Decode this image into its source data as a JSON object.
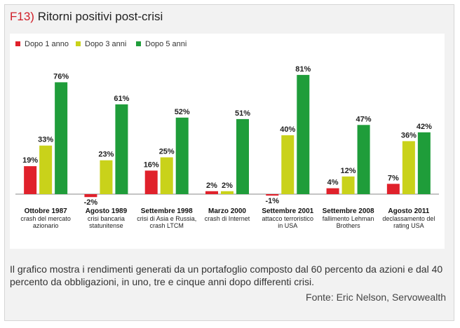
{
  "header": {
    "code": "F13)",
    "title": "Ritorni positivi post-crisi"
  },
  "colors": {
    "series_1": "#e0212b",
    "series_2": "#c9d21a",
    "series_3": "#1f9d3a"
  },
  "chart_data": {
    "type": "bar",
    "categories": [
      {
        "label": "Ottobre 1987",
        "sub": [
          "crash del mercato",
          "azionario"
        ]
      },
      {
        "label": "Agosto 1989",
        "sub": [
          "crisi bancaria",
          "statunitense"
        ]
      },
      {
        "label": "Settembre  1998",
        "sub": [
          "crisi di Asia e Russia,",
          "crash LTCM"
        ]
      },
      {
        "label": "Marzo  2000",
        "sub": [
          "crash di Internet"
        ]
      },
      {
        "label": "Settembre 2001",
        "sub": [
          "attacco terroristico",
          "in USA"
        ]
      },
      {
        "label": "Settembre 2008",
        "sub": [
          "fallimento Lehman",
          "Brothers"
        ]
      },
      {
        "label": "Agosto 2011",
        "sub": [
          "declassamento del",
          "rating USA"
        ]
      }
    ],
    "series": [
      {
        "name": "Dopo 1 anno",
        "values": [
          19,
          -2,
          16,
          2,
          -1,
          4,
          7
        ],
        "labels": [
          "19%",
          "-2%",
          "16%",
          "2%",
          "-1%",
          "4%",
          "7%"
        ]
      },
      {
        "name": "Dopo 3 anni",
        "values": [
          33,
          23,
          25,
          2,
          40,
          12,
          36
        ],
        "labels": [
          "33%",
          "23%",
          "25%",
          "2%",
          "40%",
          "12%",
          "36%"
        ]
      },
      {
        "name": "Dopo 5 anni",
        "values": [
          76,
          61,
          52,
          51,
          81,
          47,
          42
        ],
        "labels": [
          "76%",
          "61%",
          "52%",
          "51%",
          "81%",
          "47%",
          "42%"
        ]
      }
    ],
    "ylim": [
      -3,
      85
    ],
    "legend_position": "top-left",
    "grid": false
  },
  "footer": {
    "caption": "Il grafico mostra i rendimenti generati da un portafoglio composto dal 60 percento da azioni e dal 40 percento da obbligazioni, in uno, tre e cinque anni dopo differenti crisi.",
    "source": "Fonte: Eric Nelson, Servowealth"
  }
}
